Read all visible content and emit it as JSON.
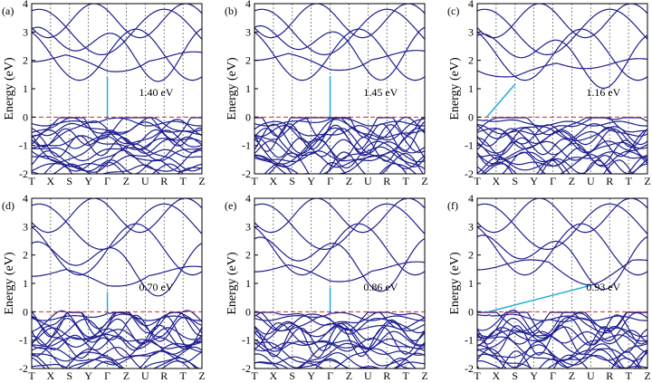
{
  "figure": {
    "ylabel": "Energy (eV)"
  },
  "chart_data": [
    {
      "type": "line",
      "panel_label": "(a)",
      "ylabel": "Energy (eV)",
      "ylim": [
        -2,
        4
      ],
      "yticks": [
        "4",
        "3",
        "2",
        "1",
        "0",
        "-1",
        "-2"
      ],
      "kpoints": [
        "T",
        "X",
        "S",
        "Y",
        "Γ",
        "Z",
        "U",
        "R",
        "T",
        "Z"
      ],
      "fermi_level": 0,
      "gap": {
        "text": "1.40 eV",
        "value": 1.4,
        "type": "direct",
        "from_k": 4,
        "to_k": 4,
        "vbm": 0.0,
        "cbm": 1.4
      }
    },
    {
      "type": "line",
      "panel_label": "(b)",
      "ylabel": "Energy (eV)",
      "ylim": [
        -2,
        4
      ],
      "yticks": [
        "4",
        "3",
        "2",
        "1",
        "0",
        "-1",
        "-2"
      ],
      "kpoints": [
        "T",
        "X",
        "S",
        "Y",
        "Γ",
        "Z",
        "U",
        "R",
        "T",
        "Z"
      ],
      "fermi_level": 0,
      "gap": {
        "text": "1.45 eV",
        "value": 1.45,
        "type": "direct",
        "from_k": 4,
        "to_k": 4,
        "vbm": 0.0,
        "cbm": 1.45
      }
    },
    {
      "type": "line",
      "panel_label": "(c)",
      "ylabel": "Energy (eV)",
      "ylim": [
        -2,
        4
      ],
      "yticks": [
        "4",
        "3",
        "2",
        "1",
        "0",
        "-1",
        "-2"
      ],
      "kpoints": [
        "T",
        "X",
        "S",
        "Y",
        "Γ",
        "Z",
        "U",
        "R",
        "T",
        "Z"
      ],
      "fermi_level": 0,
      "gap": {
        "text": "1.16 eV",
        "value": 1.16,
        "type": "indirect",
        "from_k": 0.5,
        "to_k": 2,
        "vbm": 0.0,
        "cbm": 1.16
      }
    },
    {
      "type": "line",
      "panel_label": "(d)",
      "ylabel": "Energy (eV)",
      "ylim": [
        -2,
        4
      ],
      "yticks": [
        "4",
        "3",
        "2",
        "1",
        "0",
        "-1",
        "-2"
      ],
      "kpoints": [
        "T",
        "X",
        "S",
        "Y",
        "Γ",
        "Z",
        "U",
        "R",
        "T",
        "Z"
      ],
      "fermi_level": 0,
      "gap": {
        "text": "0.70 eV",
        "value": 0.7,
        "type": "direct",
        "from_k": 4,
        "to_k": 4,
        "vbm": 0.0,
        "cbm": 0.7
      }
    },
    {
      "type": "line",
      "panel_label": "(e)",
      "ylabel": "Energy (eV)",
      "ylim": [
        -2,
        4
      ],
      "yticks": [
        "4",
        "3",
        "2",
        "1",
        "0",
        "-1",
        "-2"
      ],
      "kpoints": [
        "T",
        "X",
        "S",
        "Y",
        "Γ",
        "Z",
        "U",
        "R",
        "T",
        "Z"
      ],
      "fermi_level": 0,
      "gap": {
        "text": "0.86 eV",
        "value": 0.86,
        "type": "direct",
        "from_k": 4,
        "to_k": 4,
        "vbm": 0.0,
        "cbm": 0.86
      }
    },
    {
      "type": "line",
      "panel_label": "(f)",
      "ylabel": "Energy (eV)",
      "ylim": [
        -2,
        4
      ],
      "yticks": [
        "4",
        "3",
        "2",
        "1",
        "0",
        "-1",
        "-2"
      ],
      "kpoints": [
        "T",
        "X",
        "S",
        "Y",
        "Γ",
        "Z",
        "U",
        "R",
        "T",
        "Z"
      ],
      "fermi_level": 0,
      "gap": {
        "text": "0.93 eV",
        "value": 0.93,
        "type": "indirect",
        "from_k": 0.6,
        "to_k": 6,
        "vbm": 0.0,
        "cbm": 0.93
      }
    }
  ],
  "colors": {
    "band": "#1f1f8f",
    "fermi": "#d62728",
    "gap_arrow": "#17a9d6",
    "kline": "#555555"
  }
}
